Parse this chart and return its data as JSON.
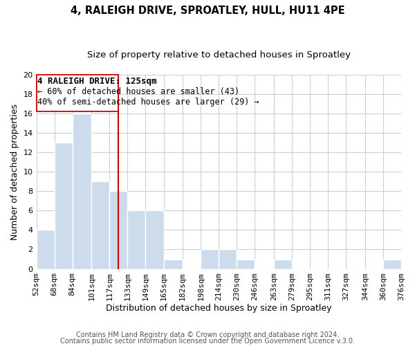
{
  "title": "4, RALEIGH DRIVE, SPROATLEY, HULL, HU11 4PE",
  "subtitle": "Size of property relative to detached houses in Sproatley",
  "xlabel": "Distribution of detached houses by size in Sproatley",
  "ylabel": "Number of detached properties",
  "bar_edges": [
    52,
    68,
    84,
    101,
    117,
    133,
    149,
    165,
    182,
    198,
    214,
    230,
    246,
    263,
    279,
    295,
    311,
    327,
    344,
    360,
    376
  ],
  "bar_heights": [
    4,
    13,
    16,
    9,
    8,
    6,
    6,
    1,
    0,
    2,
    2,
    1,
    0,
    1,
    0,
    0,
    0,
    0,
    0,
    1
  ],
  "bar_color": "#cddcec",
  "bar_edge_color": "#ffffff",
  "grid_color": "#c8d0d8",
  "vline_x": 125,
  "vline_color": "#cc0000",
  "annotation_title": "4 RALEIGH DRIVE: 125sqm",
  "annotation_line1": "← 60% of detached houses are smaller (43)",
  "annotation_line2": "40% of semi-detached houses are larger (29) →",
  "box_edge_color": "#cc0000",
  "ylim": [
    0,
    20
  ],
  "yticks": [
    0,
    2,
    4,
    6,
    8,
    10,
    12,
    14,
    16,
    18,
    20
  ],
  "xtick_labels": [
    "52sqm",
    "68sqm",
    "84sqm",
    "101sqm",
    "117sqm",
    "133sqm",
    "149sqm",
    "165sqm",
    "182sqm",
    "198sqm",
    "214sqm",
    "230sqm",
    "246sqm",
    "263sqm",
    "279sqm",
    "295sqm",
    "311sqm",
    "327sqm",
    "344sqm",
    "360sqm",
    "376sqm"
  ],
  "footer1": "Contains HM Land Registry data © Crown copyright and database right 2024.",
  "footer2": "Contains public sector information licensed under the Open Government Licence v.3.0.",
  "background_color": "#ffffff",
  "title_fontsize": 10.5,
  "subtitle_fontsize": 9.5,
  "axis_label_fontsize": 9,
  "tick_fontsize": 8,
  "annotation_title_fontsize": 9,
  "annotation_line_fontsize": 8.5,
  "footer_fontsize": 7
}
